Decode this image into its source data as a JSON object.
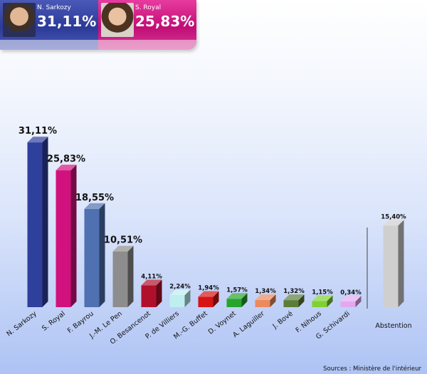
{
  "header": {
    "left": {
      "name": "N. Sarkozy",
      "score": "31,11%",
      "color": "#2c3a97"
    },
    "right": {
      "name": "S. Royal",
      "score": "25,83%",
      "color": "#c10d75"
    }
  },
  "source": "Sources : Ministère de l'intérieur",
  "chart_data": {
    "type": "bar",
    "title": "",
    "xlabel": "",
    "ylabel": "",
    "ylim": [
      0,
      32
    ],
    "categories": [
      "N. Sarkozy",
      "S. Royal",
      "F. Bayrou",
      "J.-M. Le Pen",
      "O. Besancenot",
      "P. de Villiers",
      "M.-G. Buffet",
      "D. Voynet",
      "A. Laguiller",
      "J. Bové",
      "F. Nihous",
      "G. Schivardi",
      "Abstention"
    ],
    "values": [
      31.11,
      25.83,
      18.55,
      10.51,
      4.11,
      2.24,
      1.94,
      1.57,
      1.34,
      1.32,
      1.15,
      0.34,
      15.4
    ],
    "value_labels": [
      "31,11%",
      "25,83%",
      "18,55%",
      "10,51%",
      "4,11%",
      "2,24%",
      "1,94%",
      "1,57%",
      "1,34%",
      "1,32%",
      "1,15%",
      "0,34%",
      "15,40%"
    ],
    "colors": [
      "#2e3f9c",
      "#d1127e",
      "#4f70b1",
      "#8d8d8d",
      "#b0102c",
      "#bfeef0",
      "#d61414",
      "#27a42b",
      "#ec8a5d",
      "#5c7d38",
      "#7fd132",
      "#e3a9ef",
      "#cfcfcf"
    ],
    "grid": false,
    "legend": "none"
  }
}
